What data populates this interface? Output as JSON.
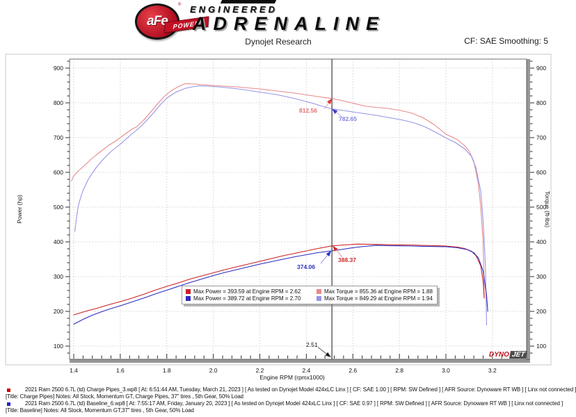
{
  "header": {
    "logo": {
      "circle_text": "aFe",
      "banner": "POWER",
      "line1": "ENGINEERED",
      "line2": "ADRENALINE",
      "registered": "®"
    },
    "title": "Dynojet Research",
    "smoothing": "CF: SAE Smoothing: 5"
  },
  "chart_data": {
    "type": "line",
    "title": "Dynojet Research",
    "xlabel": "Engine RPM (rpmx1000)",
    "ylabel_left": "Power (hp)",
    "ylabel_right": "Torque (ft-lbs)",
    "axes": {
      "xmin": 1.382,
      "xmax": 3.347,
      "vmin": 62,
      "vmax": 926,
      "xticks": [
        1.4,
        1.6,
        1.8,
        2.0,
        2.2,
        2.4,
        2.6,
        2.8,
        3.0,
        3.2
      ],
      "yticks": [
        100,
        200,
        300,
        400,
        500,
        600,
        700,
        800,
        900
      ],
      "x_minor_step": 0.04,
      "y_minor_step": 20,
      "grid": "dashed"
    },
    "cursor": {
      "rpm": 2.51,
      "label": "2.51"
    },
    "series": [
      {
        "name": "Charge Pipes Torque",
        "unit": "ft-lbs",
        "color": "#e8898b",
        "points": [
          [
            1.39,
            575
          ],
          [
            1.4,
            590
          ],
          [
            1.42,
            604
          ],
          [
            1.45,
            622
          ],
          [
            1.47,
            635
          ],
          [
            1.5,
            652
          ],
          [
            1.52,
            662
          ],
          [
            1.55,
            678
          ],
          [
            1.58,
            690
          ],
          [
            1.6,
            700
          ],
          [
            1.62,
            710
          ],
          [
            1.65,
            724
          ],
          [
            1.67,
            731
          ],
          [
            1.7,
            750
          ],
          [
            1.73,
            773
          ],
          [
            1.76,
            797
          ],
          [
            1.79,
            819
          ],
          [
            1.82,
            835
          ],
          [
            1.85,
            847
          ],
          [
            1.88,
            855.4
          ],
          [
            1.92,
            854
          ],
          [
            1.96,
            852
          ],
          [
            2.0,
            850
          ],
          [
            2.05,
            848
          ],
          [
            2.1,
            846
          ],
          [
            2.15,
            843
          ],
          [
            2.2,
            840
          ],
          [
            2.25,
            836
          ],
          [
            2.3,
            832
          ],
          [
            2.35,
            828
          ],
          [
            2.4,
            823
          ],
          [
            2.45,
            818
          ],
          [
            2.51,
            812.6
          ],
          [
            2.55,
            807
          ],
          [
            2.6,
            799
          ],
          [
            2.65,
            791
          ],
          [
            2.7,
            787
          ],
          [
            2.75,
            784
          ],
          [
            2.8,
            779
          ],
          [
            2.85,
            771
          ],
          [
            2.9,
            758
          ],
          [
            2.95,
            737
          ],
          [
            3.0,
            710
          ],
          [
            3.05,
            694
          ],
          [
            3.08,
            677
          ],
          [
            3.1,
            661
          ],
          [
            3.12,
            632
          ],
          [
            3.14,
            565
          ],
          [
            3.15,
            500
          ],
          [
            3.16,
            400
          ],
          [
            3.165,
            240
          ]
        ]
      },
      {
        "name": "Baseline Torque",
        "unit": "ft-lbs",
        "color": "#9595e5",
        "points": [
          [
            1.405,
            430
          ],
          [
            1.41,
            460
          ],
          [
            1.415,
            485
          ],
          [
            1.42,
            505
          ],
          [
            1.43,
            528
          ],
          [
            1.44,
            548
          ],
          [
            1.46,
            577
          ],
          [
            1.48,
            598
          ],
          [
            1.5,
            617
          ],
          [
            1.53,
            640
          ],
          [
            1.56,
            660
          ],
          [
            1.6,
            681
          ],
          [
            1.64,
            705
          ],
          [
            1.68,
            727
          ],
          [
            1.71,
            747
          ],
          [
            1.74,
            769
          ],
          [
            1.77,
            793
          ],
          [
            1.8,
            814
          ],
          [
            1.84,
            831
          ],
          [
            1.88,
            842
          ],
          [
            1.91,
            846
          ],
          [
            1.94,
            849.3
          ],
          [
            1.98,
            848
          ],
          [
            2.02,
            846
          ],
          [
            2.07,
            843
          ],
          [
            2.12,
            839
          ],
          [
            2.17,
            834
          ],
          [
            2.22,
            829
          ],
          [
            2.27,
            824
          ],
          [
            2.32,
            817
          ],
          [
            2.37,
            809
          ],
          [
            2.42,
            800
          ],
          [
            2.47,
            790
          ],
          [
            2.51,
            782.7
          ],
          [
            2.56,
            778
          ],
          [
            2.61,
            773
          ],
          [
            2.66,
            768
          ],
          [
            2.71,
            763
          ],
          [
            2.76,
            757
          ],
          [
            2.81,
            751
          ],
          [
            2.86,
            743
          ],
          [
            2.91,
            731
          ],
          [
            2.96,
            714
          ],
          [
            3.0,
            699
          ],
          [
            3.04,
            686
          ],
          [
            3.08,
            668
          ],
          [
            3.11,
            646
          ],
          [
            3.13,
            612
          ],
          [
            3.15,
            545
          ],
          [
            3.16,
            460
          ],
          [
            3.17,
            330
          ],
          [
            3.175,
            160
          ]
        ]
      },
      {
        "name": "Charge Pipes Power",
        "unit": "hp",
        "color": "#cc2024",
        "points": [
          [
            1.4,
            190
          ],
          [
            1.45,
            200
          ],
          [
            1.5,
            209
          ],
          [
            1.55,
            219
          ],
          [
            1.6,
            228
          ],
          [
            1.65,
            238
          ],
          [
            1.7,
            249
          ],
          [
            1.75,
            261
          ],
          [
            1.8,
            272
          ],
          [
            1.85,
            282
          ],
          [
            1.9,
            293
          ],
          [
            1.95,
            302
          ],
          [
            2.0,
            311
          ],
          [
            2.05,
            320
          ],
          [
            2.1,
            328
          ],
          [
            2.15,
            336
          ],
          [
            2.2,
            344
          ],
          [
            2.25,
            352
          ],
          [
            2.3,
            360
          ],
          [
            2.35,
            367
          ],
          [
            2.4,
            374
          ],
          [
            2.45,
            381
          ],
          [
            2.51,
            388.4
          ],
          [
            2.56,
            391
          ],
          [
            2.62,
            393.6
          ],
          [
            2.66,
            393.2
          ],
          [
            2.7,
            392.6
          ],
          [
            2.75,
            392
          ],
          [
            2.8,
            391.5
          ],
          [
            2.85,
            391
          ],
          [
            2.9,
            390
          ],
          [
            2.95,
            389
          ],
          [
            3.0,
            388
          ],
          [
            3.05,
            385
          ],
          [
            3.08,
            381
          ],
          [
            3.11,
            373
          ],
          [
            3.13,
            360
          ],
          [
            3.15,
            331
          ],
          [
            3.16,
            286
          ],
          [
            3.165,
            238
          ]
        ]
      },
      {
        "name": "Baseline Power",
        "unit": "hp",
        "color": "#2c2cc2",
        "points": [
          [
            1.4,
            163
          ],
          [
            1.44,
            177
          ],
          [
            1.48,
            189
          ],
          [
            1.52,
            199
          ],
          [
            1.56,
            208
          ],
          [
            1.6,
            216
          ],
          [
            1.65,
            227
          ],
          [
            1.7,
            238
          ],
          [
            1.75,
            250
          ],
          [
            1.8,
            261
          ],
          [
            1.85,
            272
          ],
          [
            1.9,
            283
          ],
          [
            1.95,
            293
          ],
          [
            2.0,
            303
          ],
          [
            2.05,
            312
          ],
          [
            2.1,
            320
          ],
          [
            2.15,
            328
          ],
          [
            2.2,
            336
          ],
          [
            2.25,
            343
          ],
          [
            2.3,
            350
          ],
          [
            2.35,
            357
          ],
          [
            2.4,
            363
          ],
          [
            2.45,
            369
          ],
          [
            2.51,
            374.1
          ],
          [
            2.56,
            379
          ],
          [
            2.61,
            384
          ],
          [
            2.65,
            387
          ],
          [
            2.7,
            389.7
          ],
          [
            2.75,
            389.2
          ],
          [
            2.8,
            388.6
          ],
          [
            2.85,
            388
          ],
          [
            2.9,
            387.3
          ],
          [
            2.95,
            386.6
          ],
          [
            3.0,
            386
          ],
          [
            3.05,
            383
          ],
          [
            3.09,
            378
          ],
          [
            3.12,
            369
          ],
          [
            3.14,
            353
          ],
          [
            3.16,
            316
          ],
          [
            3.175,
            245
          ],
          [
            3.18,
            200
          ]
        ]
      }
    ],
    "markers": [
      {
        "id": "torque-charge",
        "text": "812.56",
        "rpm": 2.51,
        "value": 812.56,
        "color": "#e57070",
        "arrow": "#e03535",
        "line": "#efa4a4"
      },
      {
        "id": "torque-base",
        "text": "782.65",
        "rpm": 2.51,
        "value": 782.65,
        "color": "#8282e0",
        "arrow": "#3b3bd0",
        "line": "#a9a9ec"
      },
      {
        "id": "power-charge",
        "text": "388.37",
        "rpm": 2.51,
        "value": 388.37,
        "color": "#d42a2a",
        "arrow": "#d42a2a",
        "line": "#e69a9a"
      },
      {
        "id": "power-base",
        "text": "374.06",
        "rpm": 2.51,
        "value": 374.06,
        "color": "#2f2fc4",
        "arrow": "#2f2fc4",
        "line": "#9d9de6"
      }
    ],
    "legend": {
      "entries": [
        {
          "color": "#cc2024",
          "text": "Max Power = 393.59 at Engine RPM = 2.62"
        },
        {
          "color": "#e8898b",
          "text": "Max Torque = 855.36 at Engine RPM = 1.88"
        },
        {
          "color": "#2c2cc2",
          "text": "Max Power = 389.72 at Engine RPM = 2.70"
        },
        {
          "color": "#9595e5",
          "text": "Max Torque = 849.29 at Engine RPM = 1.94"
        }
      ]
    },
    "watermark": {
      "part1": "DYNO",
      "part2": "JET"
    }
  },
  "footer": {
    "runs": [
      {
        "bullet_color": "#cc0000",
        "line1": "2021 Ram 2500 6.7L (td) Charge Pipes_3.wp8 [ At: 6:51:44 AM, Tuesday, March 21, 2023 ] [ As tested on Dynojet Model 424xLC Linx ] [ CF: SAE 1.00 ] [ RPM: SW Defined ] [ AFR Source: Dynoware RT WB ] [ Linx not connected ]",
        "line2": "[Title: Charge Pipes]  Notes: All Stock, Momentum GT, Charge Pipes, 37\" tires , 5th Gear, 50% Load"
      },
      {
        "bullet_color": "#2222cc",
        "line1": "2021 Ram 2500 6.7L (td) Baseline_6.wp8 [ At: 7:55:17 AM, Friday, January 20, 2023 ] [ As tested on Dynojet Model 424xLC Linx ] [ CF: SAE 0.97 ] [ RPM: SW Defined ] [ AFR Source: Dynoware RT WB ] [ Linx not connected ]",
        "line2": "[Title: Baseline]  Notes: All Stock, Momentum GT,37\" tires , 5th Gear, 50% Load"
      }
    ]
  }
}
